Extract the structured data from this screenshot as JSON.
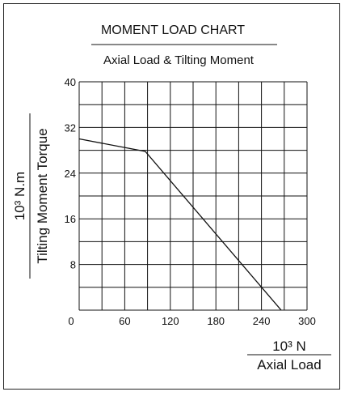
{
  "colors": {
    "line": "#111111",
    "grid": "#111111",
    "border": "#222222",
    "background": "#ffffff"
  },
  "chart_data": {
    "type": "line",
    "title": "MOMENT LOAD CHART",
    "subtitle": "Axial Load & Tilting Moment",
    "x_unit": "10³ N",
    "xlabel": "Axial Load",
    "y_unit": "10³ N.m",
    "ylabel": "Tilting Moment Torque",
    "xlim": [
      0,
      300
    ],
    "ylim": [
      0,
      40
    ],
    "x_ticks": [
      "0",
      "60",
      "120",
      "180",
      "240",
      "300"
    ],
    "y_ticks": [
      "8",
      "16",
      "24",
      "32",
      "40"
    ],
    "grid": true,
    "series": [
      {
        "x": [
          0,
          87,
          266
        ],
        "y": [
          30,
          27.8,
          0
        ]
      }
    ]
  }
}
